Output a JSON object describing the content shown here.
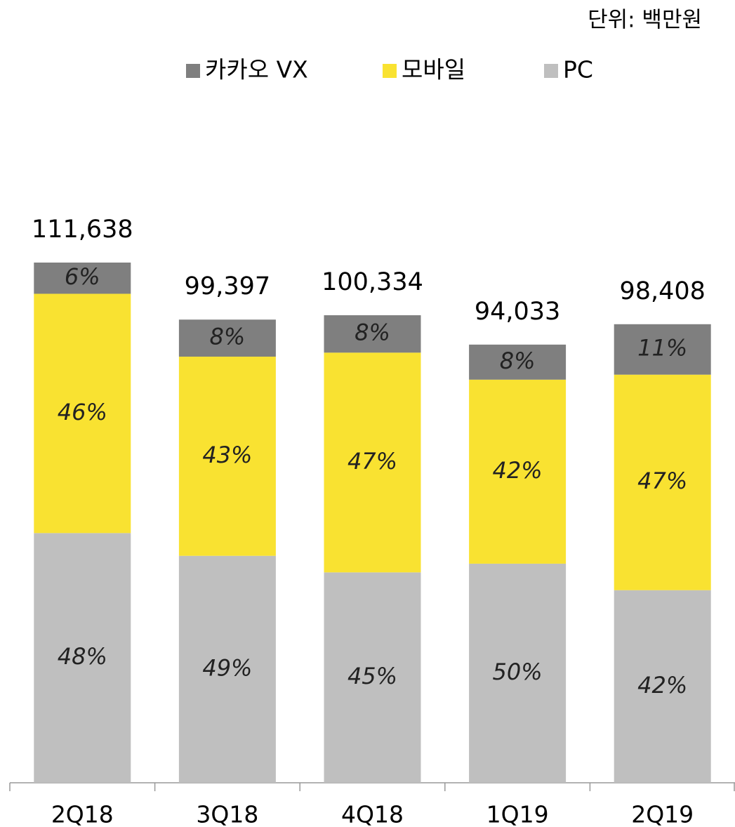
{
  "chart_data": {
    "type": "stacked_bar",
    "subtitle": "단위: 백만원",
    "categories": [
      "2Q18",
      "3Q18",
      "4Q18",
      "1Q19",
      "2Q19"
    ],
    "series": [
      {
        "name": "카카오 VX",
        "color": "#7f7f7f",
        "values": [
          6,
          8,
          8,
          8,
          11
        ],
        "value_labels": [
          "6%",
          "8%",
          "8%",
          "8%",
          "11%"
        ]
      },
      {
        "name": "모바일",
        "color": "#f9e231",
        "values": [
          46,
          43,
          47,
          42,
          47
        ],
        "value_labels": [
          "46%",
          "43%",
          "47%",
          "42%",
          "47%"
        ]
      },
      {
        "name": "PC",
        "color": "#bfbfbf",
        "values": [
          48,
          49,
          45,
          50,
          42
        ],
        "value_labels": [
          "48%",
          "49%",
          "45%",
          "50%",
          "42%"
        ]
      }
    ],
    "totals": {
      "values": [
        111638,
        99397,
        100334,
        94033,
        98408
      ],
      "value_labels": [
        "111,638",
        "99,397",
        "100,334",
        "94,033",
        "98,408"
      ]
    }
  }
}
